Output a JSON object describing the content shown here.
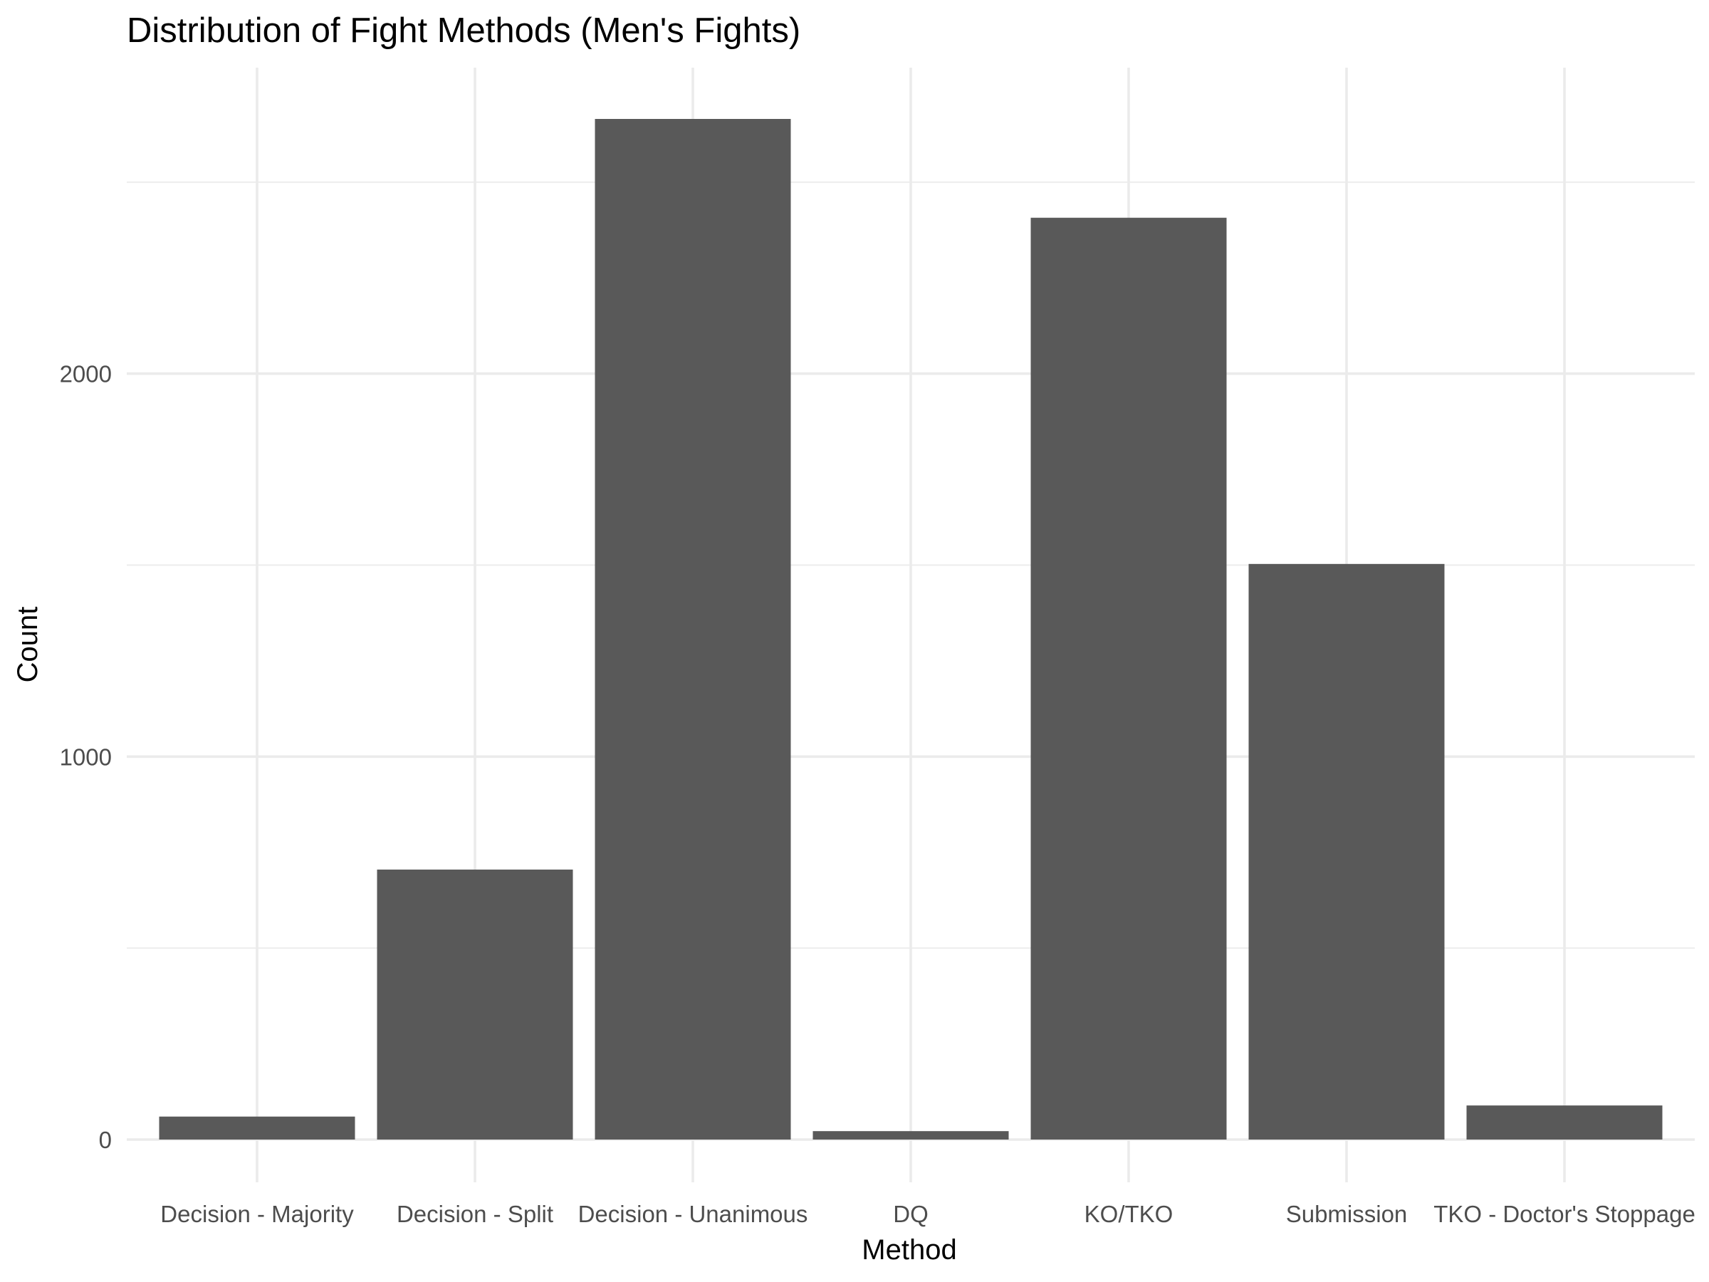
{
  "chart_data": {
    "type": "bar",
    "title": "Distribution of Fight Methods (Men's Fights)",
    "xlabel": "Method",
    "ylabel": "Count",
    "categories": [
      "Decision - Majority",
      "Decision - Split",
      "Decision - Unanimous",
      "DQ",
      "KO/TKO",
      "Submission",
      "TKO - Doctor's Stoppage"
    ],
    "values": [
      60,
      705,
      2665,
      22,
      2407,
      1503,
      89
    ],
    "ylim": [
      0,
      2665
    ],
    "yticks": [
      0,
      1000,
      2000
    ],
    "grid": true,
    "legend": "none",
    "colors": {
      "bar": "#595959",
      "grid": "#ebebeb",
      "tick_text": "#4d4d4d",
      "text": "#000000",
      "background": "#ffffff"
    }
  }
}
